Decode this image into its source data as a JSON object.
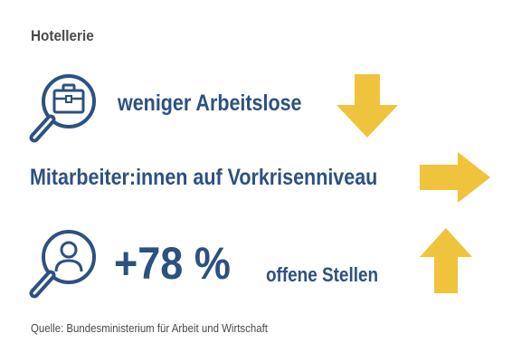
{
  "title": "Hotellerie",
  "rows": [
    {
      "icon": "briefcase-magnifier-icon",
      "text": "weniger Arbeitslose",
      "arrow": "arrow-down-icon"
    },
    {
      "text": "Mitarbeiter:innen auf Vorkrisenniveau",
      "arrow": "arrow-right-icon"
    },
    {
      "icon": "person-magnifier-icon",
      "value": "+78 %",
      "text": "offene Stellen",
      "arrow": "arrow-up-icon"
    }
  ],
  "source": "Quelle: Bundesministerium für Arbeit und Wirtschaft",
  "colors": {
    "text_blue": "#2c5181",
    "arrow_yellow": "#f0c33c",
    "gray": "#4a4a4a"
  }
}
